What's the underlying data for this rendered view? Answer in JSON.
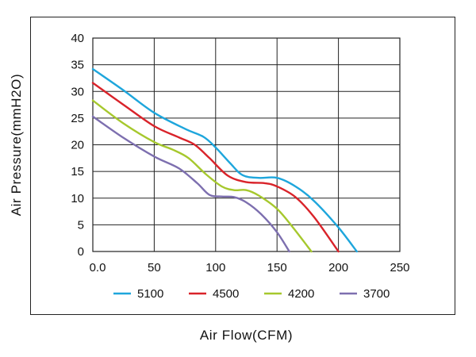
{
  "chart_data": {
    "type": "line",
    "xlabel": "Air Flow(CFM)",
    "ylabel": "Air Pressure(mmH2O)",
    "xlim": [
      0,
      250
    ],
    "ylim": [
      0,
      40
    ],
    "xticks": [
      0,
      50,
      100,
      150,
      200,
      250
    ],
    "xtick_labels": [
      "0.0",
      "50",
      "100",
      "150",
      "200",
      "250"
    ],
    "yticks": [
      0,
      5,
      10,
      15,
      20,
      25,
      30,
      35,
      40
    ],
    "grid": true,
    "legend_position": "bottom",
    "series": [
      {
        "name": "5100",
        "color": "#1ea6dc",
        "x": [
          0,
          25,
          50,
          75,
          90,
          100,
          112,
          122,
          135,
          150,
          165,
          180,
          200,
          215
        ],
        "y": [
          34.2,
          30.2,
          26.0,
          23.0,
          21.5,
          19.5,
          16.5,
          14.3,
          13.8,
          13.8,
          12.2,
          9.5,
          4.5,
          0
        ]
      },
      {
        "name": "4500",
        "color": "#d9232a",
        "x": [
          0,
          25,
          50,
          70,
          83,
          95,
          110,
          125,
          140,
          150,
          165,
          180,
          200
        ],
        "y": [
          31.6,
          27.5,
          23.5,
          21.4,
          20.0,
          17.5,
          14.2,
          13.0,
          12.8,
          12.2,
          10.2,
          6.5,
          0
        ]
      },
      {
        "name": "4200",
        "color": "#a6c82d",
        "x": [
          0,
          25,
          50,
          65,
          78,
          92,
          105,
          115,
          125,
          135,
          150,
          163,
          178
        ],
        "y": [
          28.3,
          24.0,
          20.5,
          19.1,
          17.5,
          14.5,
          12.2,
          11.5,
          11.5,
          10.5,
          8.0,
          4.5,
          0
        ]
      },
      {
        "name": "3700",
        "color": "#7d6faf",
        "x": [
          0,
          25,
          50,
          70,
          85,
          95,
          105,
          115,
          125,
          137,
          150,
          160
        ],
        "y": [
          25.3,
          21.3,
          17.8,
          15.6,
          12.8,
          10.6,
          10.3,
          10.2,
          9.2,
          7.0,
          3.6,
          0
        ]
      }
    ]
  }
}
